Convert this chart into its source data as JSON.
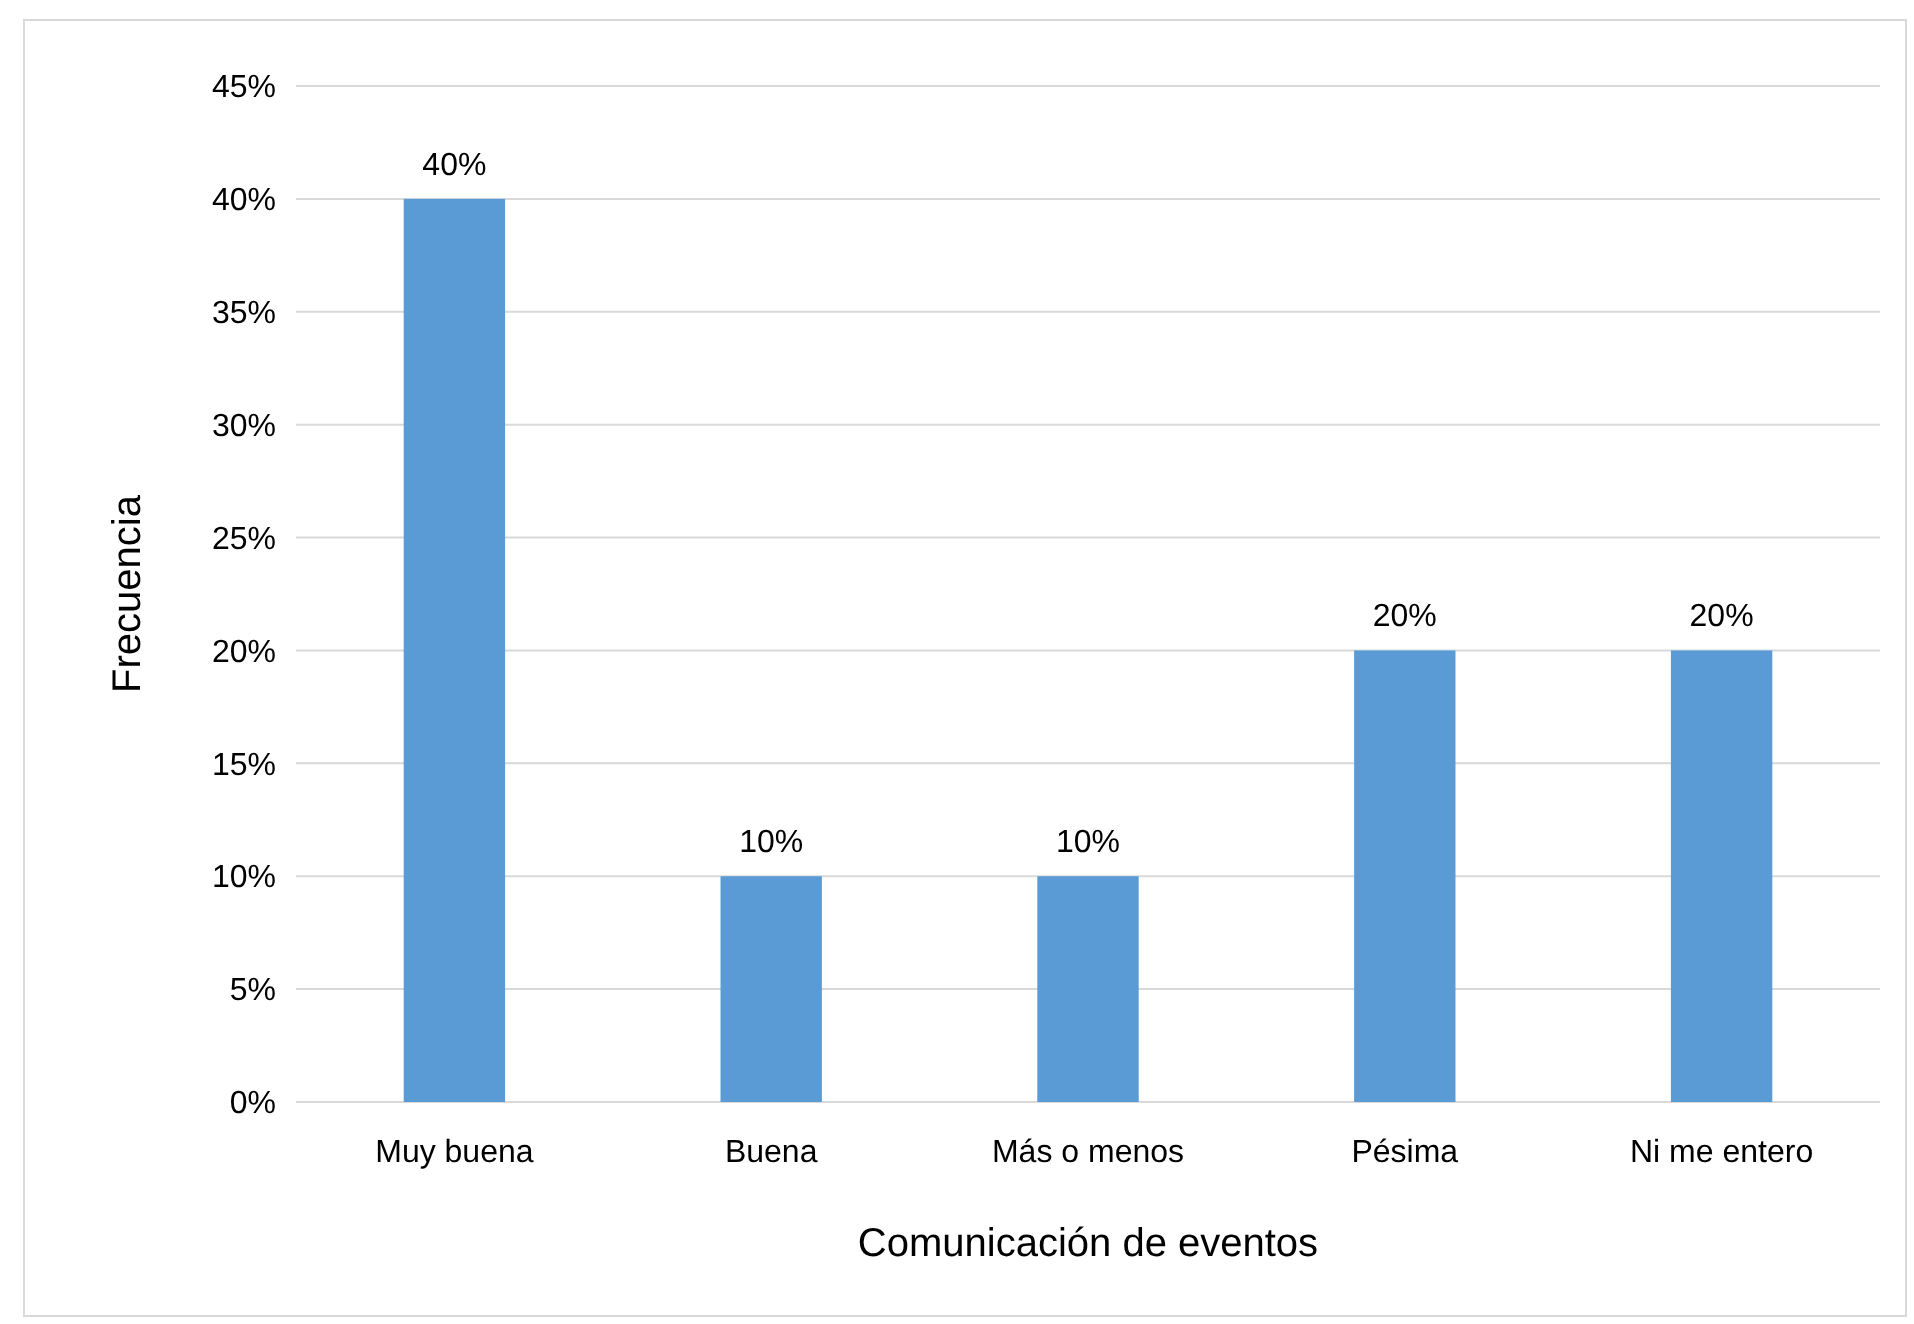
{
  "chart_data": {
    "type": "bar",
    "xlabel": "Comunicación de eventos",
    "ylabel": "Frecuencia",
    "categories": [
      "Muy buena",
      "Buena",
      "Más o menos",
      "Pésima",
      "Ni me entero"
    ],
    "values": [
      40,
      10,
      10,
      20,
      20
    ],
    "color": "#5b9bd5",
    "value_labels": [
      "40%",
      "10%",
      "10%",
      "20%",
      "20%"
    ],
    "ylim": [
      0,
      45
    ],
    "yticks": [
      {
        "value": 0,
        "label": "0%"
      },
      {
        "value": 5,
        "label": "5%"
      },
      {
        "value": 10,
        "label": "10%"
      },
      {
        "value": 15,
        "label": "15%"
      },
      {
        "value": 20,
        "label": "20%"
      },
      {
        "value": 25,
        "label": "25%"
      },
      {
        "value": 30,
        "label": "30%"
      },
      {
        "value": 35,
        "label": "35%"
      },
      {
        "value": 40,
        "label": "40%"
      },
      {
        "value": 45,
        "label": "45%"
      }
    ],
    "grid": "y"
  }
}
